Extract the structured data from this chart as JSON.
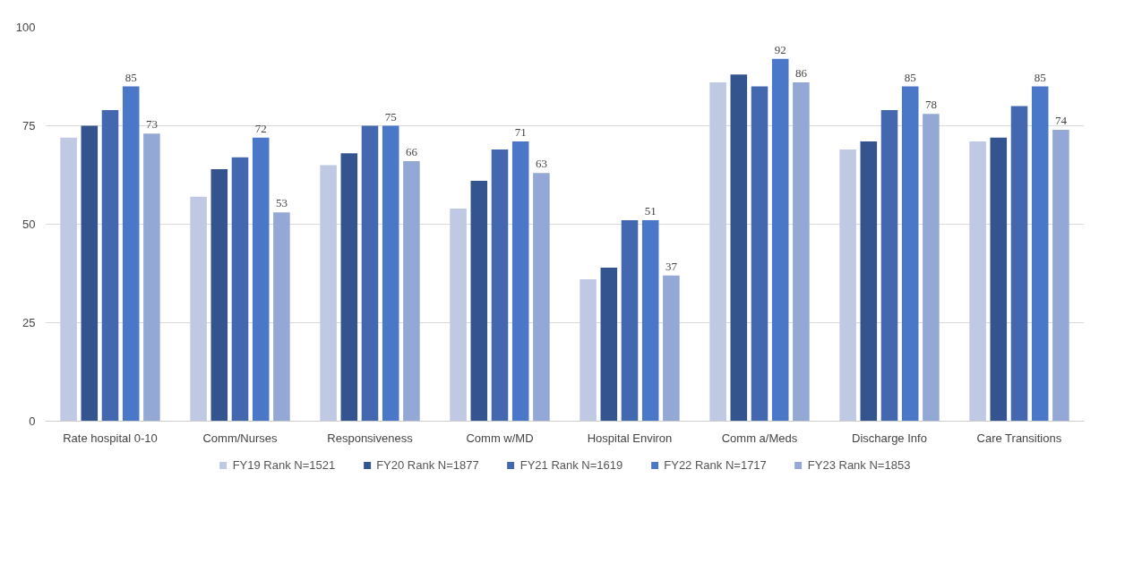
{
  "chart_data": {
    "type": "bar",
    "categories": [
      "Rate hospital 0-10",
      "Comm/Nurses",
      "Responsiveness",
      "Comm w/MD",
      "Hospital Environ",
      "Comm a/Meds",
      "Discharge Info",
      "Care Transitions"
    ],
    "series": [
      {
        "name": "FY19 Rank N=1521",
        "color": "#c0c9e4",
        "values": [
          72,
          57,
          65,
          54,
          36,
          86,
          69,
          71
        ]
      },
      {
        "name": "FY20 Rank N=1877",
        "color": "#34548f",
        "values": [
          75,
          64,
          68,
          61,
          39,
          88,
          71,
          72
        ]
      },
      {
        "name": "FY21 Rank N=1619",
        "color": "#4468b0",
        "values": [
          79,
          67,
          75,
          69,
          51,
          85,
          79,
          80
        ]
      },
      {
        "name": "FY22 Rank N=1717",
        "color": "#4a77c8",
        "values": [
          85,
          72,
          75,
          71,
          51,
          92,
          85,
          85
        ],
        "value_labels": [
          "85",
          "72",
          "75",
          "71",
          "51",
          "92",
          "85",
          "85"
        ]
      },
      {
        "name": "FY23 Rank N=1853",
        "color": "#94a8d6",
        "values": [
          73,
          53,
          66,
          63,
          37,
          86,
          78,
          74
        ],
        "value_labels": [
          "73",
          "53",
          "66",
          "63",
          "37",
          "86",
          "78",
          "74"
        ]
      }
    ],
    "ylim": [
      0,
      100
    ],
    "yticks": [
      0,
      25,
      50,
      75,
      100
    ],
    "grid": "y",
    "legend": "bottom"
  }
}
